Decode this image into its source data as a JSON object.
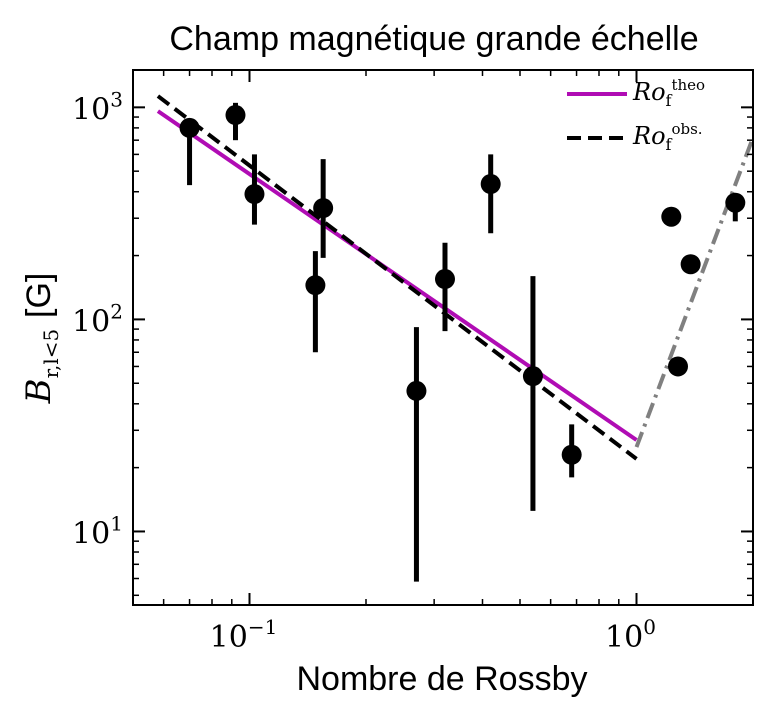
{
  "chart_data": {
    "type": "scatter",
    "title": "Champ magnétique grande échelle",
    "xlabel": "Nombre de Rossby",
    "ylabel": {
      "main": "B",
      "sub": "r,l<5",
      "unit": "[G]"
    },
    "xscale": "log",
    "yscale": "log",
    "xlim": [
      0.05,
      2.0
    ],
    "ylim": [
      4.5,
      1500
    ],
    "x_ticks": [
      {
        "value": 0.1,
        "base": "10",
        "exp": "−1"
      },
      {
        "value": 1.0,
        "base": "10",
        "exp": "0"
      }
    ],
    "y_ticks": [
      {
        "value": 10,
        "base": "10",
        "exp": "1"
      },
      {
        "value": 100,
        "base": "10",
        "exp": "2"
      },
      {
        "value": 1000,
        "base": "10",
        "exp": "3"
      }
    ],
    "grid": false,
    "legend_position": "top-right",
    "points": [
      {
        "x": 0.07,
        "y": 800,
        "ylow": 430,
        "yhigh": 800
      },
      {
        "x": 0.092,
        "y": 920,
        "ylow": 700,
        "yhigh": 1050
      },
      {
        "x": 0.103,
        "y": 390,
        "ylow": 280,
        "yhigh": 600
      },
      {
        "x": 0.148,
        "y": 145,
        "ylow": 70,
        "yhigh": 210
      },
      {
        "x": 0.155,
        "y": 335,
        "ylow": 195,
        "yhigh": 570
      },
      {
        "x": 0.27,
        "y": 46,
        "ylow": 5.8,
        "yhigh": 92
      },
      {
        "x": 0.32,
        "y": 155,
        "ylow": 88,
        "yhigh": 230
      },
      {
        "x": 0.42,
        "y": 435,
        "ylow": 255,
        "yhigh": 600
      },
      {
        "x": 0.54,
        "y": 54,
        "ylow": 12.5,
        "yhigh": 160
      },
      {
        "x": 0.68,
        "y": 23,
        "ylow": 18,
        "yhigh": 32
      },
      {
        "x": 1.23,
        "y": 305,
        "ylow": 305,
        "yhigh": 305
      },
      {
        "x": 1.28,
        "y": 60,
        "ylow": 60,
        "yhigh": 60
      },
      {
        "x": 1.38,
        "y": 182,
        "ylow": 182,
        "yhigh": 182
      },
      {
        "x": 1.8,
        "y": 355,
        "ylow": 290,
        "yhigh": 355
      }
    ],
    "series": [
      {
        "name": "Ro_f^theo",
        "legend": {
          "base": "Ro",
          "sub": "f",
          "sup": "theo"
        },
        "style": "solid",
        "color": "#b00cb4",
        "x": [
          0.058,
          1.0
        ],
        "y": [
          960,
          27
        ]
      },
      {
        "name": "Ro_f^obs.",
        "legend": {
          "base": "Ro",
          "sub": "f",
          "sup": "obs."
        },
        "style": "dashed",
        "color": "#000000",
        "x": [
          0.058,
          1.0
        ],
        "y": [
          1130,
          22
        ]
      },
      {
        "name": "",
        "style": "dashdot",
        "color": "#808080",
        "x": [
          1.0,
          2.0
        ],
        "y": [
          25,
          720
        ]
      }
    ]
  }
}
